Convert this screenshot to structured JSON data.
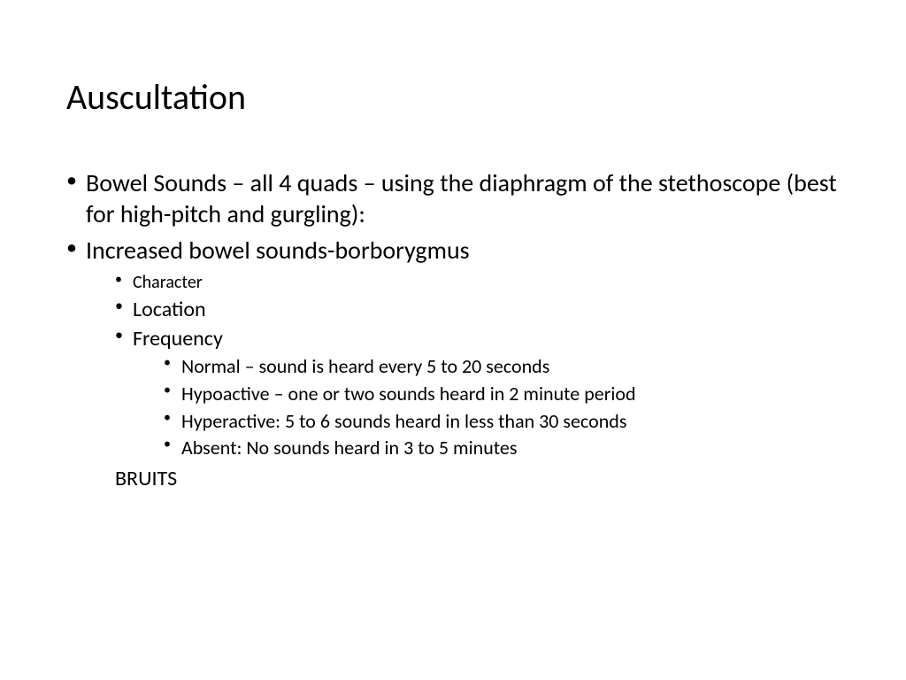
{
  "slide": {
    "title": "Auscultation",
    "bullets": {
      "item1": "Bowel Sounds – all 4 quads – using the diaphragm of the stethoscope (best for high-pitch and gurgling):",
      "item2": "Increased bowel sounds-borborygmus",
      "sub1": "Character",
      "sub2": "Location",
      "sub3": "Frequency",
      "subsub1": "Normal – sound is heard every 5 to 20 seconds",
      "subsub2": "Hypoactive – one or two sounds heard in 2 minute period",
      "subsub3": "Hyperactive: 5 to 6 sounds heard in less than 30 seconds",
      "subsub4": "Absent: No sounds heard in 3 to 5 minutes",
      "final": "BRUITS"
    }
  },
  "styling": {
    "background_color": "#ffffff",
    "text_color": "#000000",
    "font_family": "Calibri",
    "title_fontsize": 40,
    "body_fontsize_l1": 28,
    "body_fontsize_l2": 24,
    "body_fontsize_l3": 22,
    "slide_width": 1024,
    "slide_height": 768
  }
}
